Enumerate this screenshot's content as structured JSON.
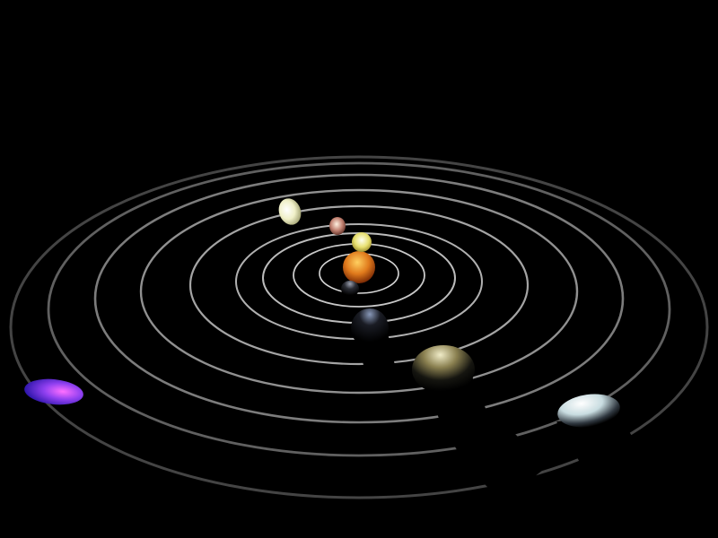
{
  "scene": {
    "type": "3d-solar-system-orrery",
    "background_color": "#000000",
    "orbit_ring_color": "#b0b0b0",
    "orbit_count": 9,
    "sun": {
      "name": "sun",
      "color": "#e07a1c",
      "highlight": "#ffd060"
    },
    "planets": [
      {
        "name": "mercury",
        "color": "#3a3a44",
        "highlight": "#9aa0b0",
        "orbit": 1
      },
      {
        "name": "venus",
        "color": "#e8e070",
        "highlight": "#fffff0",
        "orbit": 2
      },
      {
        "name": "earth",
        "color": "#20222c",
        "highlight": "#8898b8",
        "orbit": 3
      },
      {
        "name": "mars",
        "color": "#c08070",
        "highlight": "#fff0e0",
        "orbit": 4
      },
      {
        "name": "jupiter",
        "color": "#6a6040",
        "highlight": "#f0ecc8",
        "orbit": 5
      },
      {
        "name": "saturn",
        "color": "#e0e0b0",
        "highlight": "#ffffff",
        "orbit": 6
      },
      {
        "name": "uranus",
        "color": "#a0b8c0",
        "highlight": "#ffffff",
        "orbit": 7
      },
      {
        "name": "neptune",
        "color": "#4030e0",
        "highlight": "#e060ff",
        "orbit": 9
      }
    ]
  }
}
